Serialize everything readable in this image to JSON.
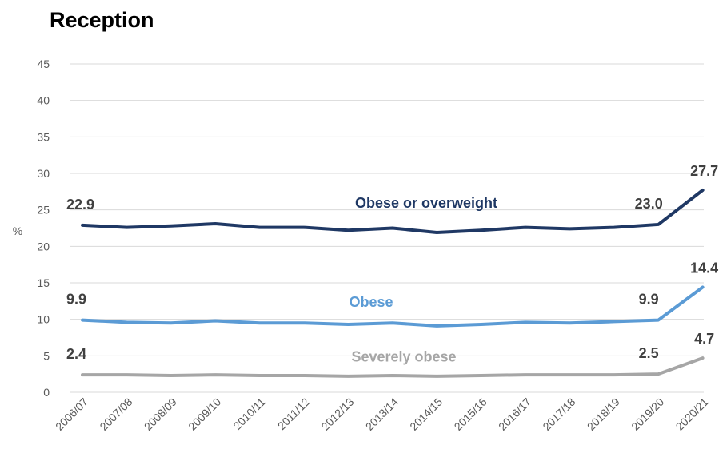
{
  "chart_data": {
    "type": "line",
    "title": "Reception",
    "ylabel": "%",
    "xlabel": "",
    "ylim": [
      0,
      45
    ],
    "yticks": [
      0,
      5,
      10,
      15,
      20,
      25,
      30,
      35,
      40,
      45
    ],
    "grid": true,
    "categories": [
      "2006/07",
      "2007/08",
      "2008/09",
      "2009/10",
      "2010/11",
      "2011/12",
      "2012/13",
      "2013/14",
      "2014/15",
      "2015/16",
      "2016/17",
      "2017/18",
      "2018/19",
      "2019/20",
      "2020/21"
    ],
    "series": [
      {
        "name": "Obese or overweight",
        "color": "#1f3864",
        "values": [
          22.9,
          22.6,
          22.8,
          23.1,
          22.6,
          22.6,
          22.2,
          22.5,
          21.9,
          22.2,
          22.6,
          22.4,
          22.6,
          23.0,
          27.7
        ],
        "labels": [
          {
            "index": 0,
            "text": "22.9"
          },
          {
            "index": 13,
            "text": "23.0"
          },
          {
            "index": 14,
            "text": "27.7"
          }
        ]
      },
      {
        "name": "Obese",
        "color": "#5b9bd5",
        "values": [
          9.9,
          9.6,
          9.5,
          9.8,
          9.5,
          9.5,
          9.3,
          9.5,
          9.1,
          9.3,
          9.6,
          9.5,
          9.7,
          9.9,
          14.4
        ],
        "labels": [
          {
            "index": 0,
            "text": "9.9"
          },
          {
            "index": 13,
            "text": "9.9"
          },
          {
            "index": 14,
            "text": "14.4"
          }
        ]
      },
      {
        "name": "Severely obese",
        "color": "#a6a6a6",
        "values": [
          2.4,
          2.4,
          2.3,
          2.4,
          2.3,
          2.3,
          2.2,
          2.3,
          2.2,
          2.3,
          2.4,
          2.4,
          2.4,
          2.5,
          4.7
        ],
        "labels": [
          {
            "index": 0,
            "text": "2.4"
          },
          {
            "index": 13,
            "text": "2.5"
          },
          {
            "index": 14,
            "text": "4.7"
          }
        ]
      }
    ]
  }
}
